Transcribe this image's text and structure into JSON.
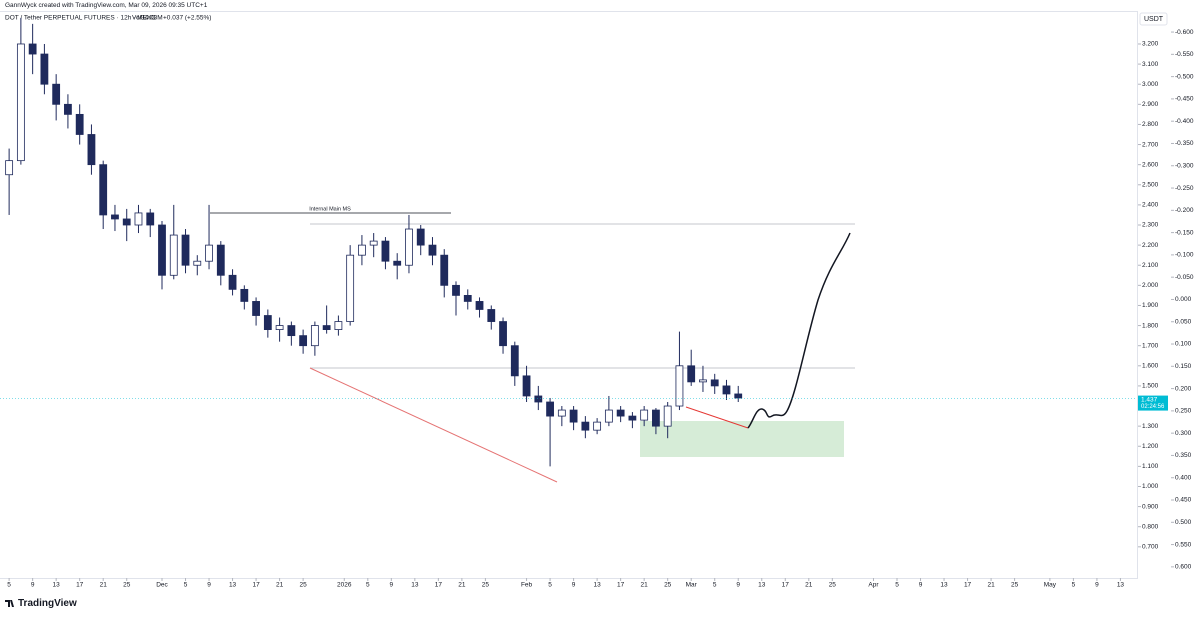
{
  "header": {
    "attribution": "GannWyck created with TradingView.com, Mar 09, 2026 09:35 UTC+1",
    "symbol": "DOT / Tether PERPETUAL FUTURES · 12h · MEXC",
    "volume": "Vol34.08M",
    "change": "+0.037 (+2.55%)",
    "currency": "USDT",
    "brand": "TradingView"
  },
  "chart_data": {
    "type": "candlestick",
    "annotation": "Internal Main MS",
    "x": [
      "11-05",
      "11-07",
      "11-09",
      "11-11",
      "11-13",
      "11-15",
      "11-17",
      "11-19",
      "11-21",
      "11-23",
      "11-25",
      "11-27",
      "11-29",
      "12-01",
      "12-03",
      "12-05",
      "12-07",
      "12-09",
      "12-11",
      "12-13",
      "12-15",
      "12-17",
      "12-19",
      "12-21",
      "12-23",
      "12-25",
      "12-27",
      "12-29",
      "12-31",
      "01-02",
      "01-04",
      "01-06",
      "01-08",
      "01-10",
      "01-12",
      "01-14",
      "01-16",
      "01-18",
      "01-20",
      "01-22",
      "01-24",
      "01-26",
      "01-28",
      "01-30",
      "02-01",
      "02-03",
      "02-05",
      "02-07",
      "02-09",
      "02-11",
      "02-13",
      "02-15",
      "02-17",
      "02-19",
      "02-21",
      "02-23",
      "02-25",
      "02-27",
      "03-01",
      "03-03",
      "03-05",
      "03-07",
      "03-09"
    ],
    "open": [
      2.55,
      2.62,
      3.2,
      3.15,
      3.0,
      2.9,
      2.85,
      2.75,
      2.6,
      2.35,
      2.33,
      2.3,
      2.36,
      2.3,
      2.05,
      2.25,
      2.1,
      2.12,
      2.2,
      2.05,
      1.98,
      1.92,
      1.85,
      1.78,
      1.8,
      1.75,
      1.7,
      1.8,
      1.78,
      1.82,
      2.15,
      2.2,
      2.22,
      2.12,
      2.1,
      2.28,
      2.2,
      2.15,
      2.0,
      1.95,
      1.92,
      1.88,
      1.82,
      1.7,
      1.55,
      1.45,
      1.42,
      1.35,
      1.38,
      1.32,
      1.28,
      1.32,
      1.38,
      1.35,
      1.33,
      1.38,
      1.3,
      1.4,
      1.6,
      1.52,
      1.53,
      1.5,
      1.46
    ],
    "high": [
      2.68,
      3.33,
      3.3,
      3.2,
      3.05,
      2.95,
      2.9,
      2.8,
      2.62,
      2.4,
      2.38,
      2.4,
      2.38,
      2.32,
      2.4,
      2.28,
      2.15,
      2.4,
      2.22,
      2.08,
      2.0,
      1.94,
      1.88,
      1.84,
      1.82,
      1.78,
      1.82,
      1.9,
      1.85,
      2.2,
      2.25,
      2.26,
      2.24,
      2.16,
      2.35,
      2.3,
      2.24,
      2.18,
      2.02,
      1.98,
      1.94,
      1.9,
      1.84,
      1.72,
      1.6,
      1.5,
      1.44,
      1.4,
      1.4,
      1.35,
      1.34,
      1.45,
      1.4,
      1.37,
      1.4,
      1.39,
      1.42,
      1.77,
      1.68,
      1.6,
      1.56,
      1.53,
      1.5
    ],
    "low": [
      2.35,
      2.6,
      3.05,
      2.95,
      2.82,
      2.78,
      2.7,
      2.55,
      2.28,
      2.27,
      2.22,
      2.26,
      2.24,
      1.98,
      2.03,
      2.06,
      2.05,
      2.08,
      2.0,
      1.95,
      1.88,
      1.8,
      1.74,
      1.72,
      1.7,
      1.66,
      1.65,
      1.76,
      1.75,
      1.8,
      2.1,
      2.14,
      2.08,
      2.03,
      2.06,
      2.15,
      2.1,
      1.94,
      1.85,
      1.88,
      1.84,
      1.78,
      1.66,
      1.5,
      1.42,
      1.38,
      1.1,
      1.3,
      1.28,
      1.24,
      1.26,
      1.3,
      1.32,
      1.29,
      1.3,
      1.26,
      1.24,
      1.38,
      1.5,
      1.47,
      1.46,
      1.43,
      1.42
    ],
    "close": [
      2.62,
      3.2,
      3.15,
      3.0,
      2.9,
      2.85,
      2.75,
      2.6,
      2.35,
      2.33,
      2.3,
      2.36,
      2.3,
      2.05,
      2.25,
      2.1,
      2.12,
      2.2,
      2.05,
      1.98,
      1.92,
      1.85,
      1.78,
      1.8,
      1.75,
      1.7,
      1.8,
      1.78,
      1.82,
      2.15,
      2.2,
      2.22,
      2.12,
      2.1,
      2.28,
      2.2,
      2.15,
      2.0,
      1.95,
      1.92,
      1.88,
      1.82,
      1.7,
      1.55,
      1.45,
      1.42,
      1.35,
      1.38,
      1.32,
      1.28,
      1.32,
      1.38,
      1.35,
      1.33,
      1.38,
      1.3,
      1.4,
      1.6,
      1.52,
      1.53,
      1.5,
      1.46,
      1.44
    ],
    "up_color": "#ffffff",
    "down_color": "#1f2a5c",
    "wick_color": "#1f2a5c",
    "grid": false,
    "last_price": {
      "value": 1.437,
      "label": "1.437"
    },
    "countdown": "02:24:56",
    "price_tag_color": "#00bcd4",
    "ylim": [
      0.545,
      3.359
    ],
    "yticks": [
      {
        "value": 3.2,
        "label": "3.200"
      },
      {
        "value": 3.1,
        "label": "3.100"
      },
      {
        "value": 3.0,
        "label": "3.000"
      },
      {
        "value": 2.9,
        "label": "2.900"
      },
      {
        "value": 2.8,
        "label": "2.800"
      },
      {
        "value": 2.7,
        "label": "2.700"
      },
      {
        "value": 2.6,
        "label": "2.600"
      },
      {
        "value": 2.5,
        "label": "2.500"
      },
      {
        "value": 2.4,
        "label": "2.400"
      },
      {
        "value": 2.3,
        "label": "2.300"
      },
      {
        "value": 2.2,
        "label": "2.200"
      },
      {
        "value": 2.1,
        "label": "2.100"
      },
      {
        "value": 2.0,
        "label": "2.000"
      },
      {
        "value": 1.9,
        "label": "1.900"
      },
      {
        "value": 1.8,
        "label": "1.800"
      },
      {
        "value": 1.7,
        "label": "1.700"
      },
      {
        "value": 1.6,
        "label": "1.600"
      },
      {
        "value": 1.5,
        "label": "1.500"
      },
      {
        "value": 1.4,
        "label": "1.400"
      },
      {
        "value": 1.3,
        "label": "1.300"
      },
      {
        "value": 1.2,
        "label": "1.200"
      },
      {
        "value": 1.1,
        "label": "1.100"
      },
      {
        "value": 1.0,
        "label": "1.000"
      },
      {
        "value": 0.9,
        "label": "0.900"
      },
      {
        "value": 0.8,
        "label": "0.800"
      },
      {
        "value": 0.7,
        "label": "0.700"
      }
    ],
    "y2lim": [
      -0.645,
      0.625
    ],
    "y2_inverted": true,
    "y2ticks": [
      {
        "value": -0.6,
        "label": "-0.600"
      },
      {
        "value": -0.55,
        "label": "-0.550"
      },
      {
        "value": -0.5,
        "label": "-0.500"
      },
      {
        "value": -0.45,
        "label": "-0.450"
      },
      {
        "value": -0.4,
        "label": "-0.400"
      },
      {
        "value": -0.35,
        "label": "-0.350"
      },
      {
        "value": -0.3,
        "label": "-0.300"
      },
      {
        "value": -0.25,
        "label": "-0.250"
      },
      {
        "value": -0.2,
        "label": "-0.200"
      },
      {
        "value": -0.15,
        "label": "-0.150"
      },
      {
        "value": -0.1,
        "label": "-0.100"
      },
      {
        "value": -0.05,
        "label": "-0.050"
      },
      {
        "value": 0,
        "label": "0.000"
      },
      {
        "value": 0.05,
        "label": "0.050"
      },
      {
        "value": 0.1,
        "label": "0.100"
      },
      {
        "value": 0.15,
        "label": "0.150"
      },
      {
        "value": 0.2,
        "label": "0.200"
      },
      {
        "value": 0.25,
        "label": "0.250"
      },
      {
        "value": 0.3,
        "label": "0.300"
      },
      {
        "value": 0.35,
        "label": "0.350"
      },
      {
        "value": 0.4,
        "label": "0.400"
      },
      {
        "value": 0.45,
        "label": "0.450"
      },
      {
        "value": 0.5,
        "label": "0.500"
      },
      {
        "value": 0.55,
        "label": "0.550"
      },
      {
        "value": 0.6,
        "label": "0.600"
      }
    ],
    "xticks": [
      {
        "value": "11-05",
        "label": "5"
      },
      {
        "value": "11-09",
        "label": "9"
      },
      {
        "value": "11-13",
        "label": "13"
      },
      {
        "value": "11-17",
        "label": "17"
      },
      {
        "value": "11-21",
        "label": "21"
      },
      {
        "value": "11-25",
        "label": "25"
      },
      {
        "value": "12-01",
        "label": "Dec"
      },
      {
        "value": "12-05",
        "label": "5"
      },
      {
        "value": "12-09",
        "label": "9"
      },
      {
        "value": "12-13",
        "label": "13"
      },
      {
        "value": "12-17",
        "label": "17"
      },
      {
        "value": "12-21",
        "label": "21"
      },
      {
        "value": "12-25",
        "label": "25"
      },
      {
        "value": "01-01",
        "label": "2026"
      },
      {
        "value": "01-05",
        "label": "5"
      },
      {
        "value": "01-09",
        "label": "9"
      },
      {
        "value": "01-13",
        "label": "13"
      },
      {
        "value": "01-17",
        "label": "17"
      },
      {
        "value": "01-21",
        "label": "21"
      },
      {
        "value": "01-25",
        "label": "25"
      },
      {
        "value": "02-01",
        "label": "Feb"
      },
      {
        "value": "02-05",
        "label": "5"
      },
      {
        "value": "02-09",
        "label": "9"
      },
      {
        "value": "02-13",
        "label": "13"
      },
      {
        "value": "02-17",
        "label": "17"
      },
      {
        "value": "02-21",
        "label": "21"
      },
      {
        "value": "02-25",
        "label": "25"
      },
      {
        "value": "03-01",
        "label": "Mar"
      },
      {
        "value": "03-05",
        "label": "5"
      },
      {
        "value": "03-09",
        "label": "9"
      },
      {
        "value": "03-13",
        "label": "13"
      },
      {
        "value": "03-17",
        "label": "17"
      },
      {
        "value": "03-21",
        "label": "21"
      },
      {
        "value": "03-25",
        "label": "25"
      },
      {
        "value": "04-01",
        "label": "Apr"
      },
      {
        "value": "04-05",
        "label": "5"
      },
      {
        "value": "04-09",
        "label": "9"
      },
      {
        "value": "04-13",
        "label": "13"
      },
      {
        "value": "04-17",
        "label": "17"
      },
      {
        "value": "04-21",
        "label": "21"
      },
      {
        "value": "04-25",
        "label": "25"
      },
      {
        "value": "05-01",
        "label": "May"
      },
      {
        "value": "05-05",
        "label": "5"
      },
      {
        "value": "05-09",
        "label": "9"
      },
      {
        "value": "05-13",
        "label": "13"
      }
    ]
  }
}
